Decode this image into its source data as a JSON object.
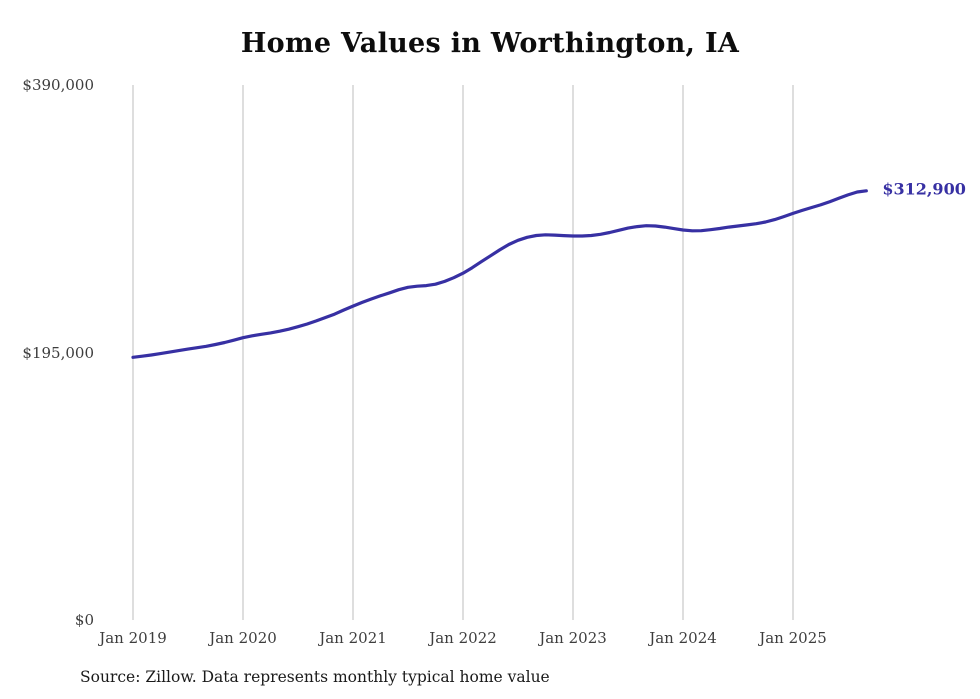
{
  "source": "Source: Zillow. Data represents monthly typical home value",
  "chart_data": {
    "type": "line",
    "title": "Home Values in Worthington, IA",
    "xlabel": "",
    "ylabel": "",
    "ylim": [
      0,
      390000
    ],
    "grid": "vertical-only",
    "line_color": "#3730a3",
    "grid_color": "#cccccc",
    "frequency": "monthly",
    "x_start": "Jan 2019",
    "x_end": "Sep 2025",
    "end_label": "$312,900",
    "end_value": 312900,
    "y_ticks": [
      {
        "value": 390000,
        "label": "$390,000"
      },
      {
        "value": 195000,
        "label": "$195,000"
      },
      {
        "value": 0,
        "label": "$0"
      }
    ],
    "x_ticks": [
      {
        "month_index": 0,
        "label": "Jan 2019"
      },
      {
        "month_index": 12,
        "label": "Jan 2020"
      },
      {
        "month_index": 24,
        "label": "Jan 2021"
      },
      {
        "month_index": 36,
        "label": "Jan 2022"
      },
      {
        "month_index": 48,
        "label": "Jan 2023"
      },
      {
        "month_index": 60,
        "label": "Jan 2024"
      },
      {
        "month_index": 72,
        "label": "Jan 2025"
      }
    ],
    "values": [
      191500,
      192300,
      193200,
      194200,
      195300,
      196400,
      197500,
      198500,
      199500,
      200800,
      202300,
      204000,
      205800,
      207200,
      208300,
      209300,
      210500,
      212000,
      213800,
      215800,
      218000,
      220500,
      223000,
      226000,
      228800,
      231500,
      234000,
      236300,
      238500,
      240800,
      242500,
      243300,
      243800,
      244800,
      246800,
      249500,
      252800,
      256800,
      261200,
      265500,
      269800,
      273700,
      276800,
      279000,
      280300,
      280800,
      280600,
      280200,
      279900,
      279900,
      280300,
      281200,
      282500,
      284100,
      285700,
      286800,
      287400,
      287200,
      286400,
      285300,
      284300,
      283700,
      283800,
      284500,
      285400,
      286400,
      287200,
      288000,
      288900,
      290100,
      291900,
      294100,
      296400,
      298600,
      300600,
      302600,
      304900,
      307400,
      309900,
      312000,
      312900
    ]
  }
}
